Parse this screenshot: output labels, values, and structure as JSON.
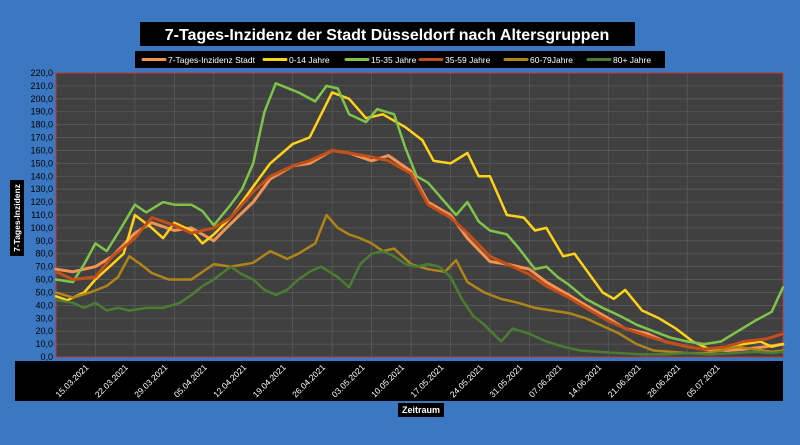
{
  "chart_data": {
    "type": "line",
    "title": "7-Tages-Inzidenz der Stadt Düsseldorf nach Altersgruppen",
    "xlabel": "Zeitraum",
    "ylabel": "7-Tages-Inzidenz",
    "ylim": [
      0,
      220
    ],
    "ytick_step": 10,
    "ytick_labels": [
      "0,0",
      "10,0",
      "20,0",
      "30,0",
      "40,0",
      "50,0",
      "60,0",
      "70,0",
      "80,0",
      "90,0",
      "100,0",
      "110,0",
      "120,0",
      "130,0",
      "140,0",
      "150,0",
      "160,0",
      "170,0",
      "180,0",
      "190,0",
      "200,0",
      "210,0",
      "220,0"
    ],
    "x_start_day": 0,
    "x_end_day": 129,
    "xtick_days": [
      0,
      7,
      14,
      21,
      28,
      35,
      42,
      49,
      56,
      63,
      70,
      77,
      84,
      91,
      98,
      105,
      112
    ],
    "xtick_labels": [
      "15.03.2021",
      "22.03.2021",
      "29.03.2021",
      "05.04.2021",
      "12.04.2021",
      "19.04.2021",
      "26.04.2021",
      "03.05.2021",
      "10.05.2021",
      "17.05.2021",
      "24.05.2021",
      "31.05.2021",
      "07.06.2021",
      "14.06.2021",
      "21.06.2021",
      "28.06.2021",
      "05.07.2021"
    ],
    "legend_position": "top",
    "grid": true,
    "colors": {
      "page_background": "#3c78c2",
      "plot_background": "#404040",
      "grid": "#5a5a5a",
      "plot_border": "#c0392b",
      "title_box": "#000000",
      "text_on_dark": "#ffffff"
    },
    "series": [
      {
        "name": "7-Tages-Inzidenz Stadt",
        "color": "#f39352",
        "width": 3,
        "points": [
          [
            0,
            68
          ],
          [
            3,
            66
          ],
          [
            7,
            70
          ],
          [
            10,
            78
          ],
          [
            14,
            96
          ],
          [
            17,
            104
          ],
          [
            21,
            98
          ],
          [
            24,
            100
          ],
          [
            28,
            90
          ],
          [
            30,
            99
          ],
          [
            35,
            120
          ],
          [
            38,
            138
          ],
          [
            42,
            148
          ],
          [
            45,
            150
          ],
          [
            49,
            160
          ],
          [
            52,
            158
          ],
          [
            56,
            152
          ],
          [
            59,
            156
          ],
          [
            63,
            144
          ],
          [
            66,
            120
          ],
          [
            70,
            110
          ],
          [
            73,
            92
          ],
          [
            77,
            74
          ],
          [
            80,
            72
          ],
          [
            84,
            68
          ],
          [
            87,
            58
          ],
          [
            91,
            48
          ],
          [
            94,
            40
          ],
          [
            98,
            30
          ],
          [
            101,
            22
          ],
          [
            105,
            18
          ],
          [
            108,
            12
          ],
          [
            112,
            8
          ],
          [
            115,
            6
          ],
          [
            119,
            5
          ],
          [
            122,
            6
          ],
          [
            126,
            8
          ],
          [
            129,
            10
          ]
        ]
      },
      {
        "name": "0-14 Jahre",
        "color": "#ffd21a",
        "width": 2.5,
        "points": [
          [
            0,
            47
          ],
          [
            2,
            44
          ],
          [
            5,
            50
          ],
          [
            7,
            60
          ],
          [
            10,
            72
          ],
          [
            12,
            80
          ],
          [
            14,
            110
          ],
          [
            17,
            100
          ],
          [
            19,
            92
          ],
          [
            21,
            104
          ],
          [
            24,
            98
          ],
          [
            26,
            88
          ],
          [
            28,
            95
          ],
          [
            31,
            108
          ],
          [
            35,
            132
          ],
          [
            38,
            150
          ],
          [
            42,
            165
          ],
          [
            45,
            170
          ],
          [
            49,
            205
          ],
          [
            52,
            200
          ],
          [
            55,
            185
          ],
          [
            58,
            188
          ],
          [
            62,
            178
          ],
          [
            65,
            168
          ],
          [
            67,
            152
          ],
          [
            70,
            150
          ],
          [
            73,
            158
          ],
          [
            75,
            140
          ],
          [
            77,
            140
          ],
          [
            80,
            110
          ],
          [
            83,
            108
          ],
          [
            85,
            98
          ],
          [
            87,
            100
          ],
          [
            90,
            78
          ],
          [
            92,
            80
          ],
          [
            95,
            62
          ],
          [
            97,
            50
          ],
          [
            99,
            45
          ],
          [
            101,
            52
          ],
          [
            104,
            36
          ],
          [
            107,
            30
          ],
          [
            110,
            22
          ],
          [
            113,
            12
          ],
          [
            116,
            6
          ],
          [
            119,
            8
          ],
          [
            122,
            10
          ],
          [
            125,
            12
          ],
          [
            127,
            8
          ],
          [
            129,
            10
          ]
        ]
      },
      {
        "name": "15-35 Jahre",
        "color": "#7fc44a",
        "width": 2.5,
        "points": [
          [
            0,
            60
          ],
          [
            3,
            58
          ],
          [
            5,
            72
          ],
          [
            7,
            88
          ],
          [
            9,
            82
          ],
          [
            11,
            96
          ],
          [
            14,
            118
          ],
          [
            16,
            112
          ],
          [
            19,
            120
          ],
          [
            21,
            118
          ],
          [
            24,
            118
          ],
          [
            26,
            113
          ],
          [
            28,
            102
          ],
          [
            31,
            118
          ],
          [
            33,
            130
          ],
          [
            35,
            150
          ],
          [
            37,
            190
          ],
          [
            39,
            212
          ],
          [
            43,
            205
          ],
          [
            46,
            198
          ],
          [
            48,
            210
          ],
          [
            50,
            208
          ],
          [
            52,
            188
          ],
          [
            55,
            182
          ],
          [
            57,
            192
          ],
          [
            60,
            188
          ],
          [
            62,
            162
          ],
          [
            64,
            140
          ],
          [
            66,
            135
          ],
          [
            68,
            125
          ],
          [
            71,
            110
          ],
          [
            73,
            120
          ],
          [
            75,
            105
          ],
          [
            77,
            98
          ],
          [
            80,
            95
          ],
          [
            82,
            85
          ],
          [
            85,
            68
          ],
          [
            87,
            70
          ],
          [
            89,
            62
          ],
          [
            91,
            56
          ],
          [
            94,
            45
          ],
          [
            97,
            38
          ],
          [
            100,
            32
          ],
          [
            103,
            25
          ],
          [
            106,
            20
          ],
          [
            109,
            15
          ],
          [
            112,
            12
          ],
          [
            115,
            10
          ],
          [
            118,
            12
          ],
          [
            121,
            20
          ],
          [
            124,
            28
          ],
          [
            127,
            35
          ],
          [
            129,
            54
          ]
        ]
      },
      {
        "name": "35-59 Jahre",
        "color": "#c24e1a",
        "width": 3,
        "points": [
          [
            0,
            66
          ],
          [
            3,
            60
          ],
          [
            7,
            62
          ],
          [
            10,
            78
          ],
          [
            14,
            92
          ],
          [
            17,
            108
          ],
          [
            21,
            102
          ],
          [
            24,
            96
          ],
          [
            28,
            100
          ],
          [
            31,
            108
          ],
          [
            35,
            128
          ],
          [
            38,
            140
          ],
          [
            42,
            148
          ],
          [
            45,
            152
          ],
          [
            49,
            160
          ],
          [
            52,
            158
          ],
          [
            56,
            155
          ],
          [
            59,
            152
          ],
          [
            63,
            142
          ],
          [
            66,
            118
          ],
          [
            70,
            108
          ],
          [
            73,
            96
          ],
          [
            77,
            78
          ],
          [
            80,
            72
          ],
          [
            84,
            64
          ],
          [
            87,
            55
          ],
          [
            91,
            46
          ],
          [
            94,
            38
          ],
          [
            98,
            28
          ],
          [
            101,
            22
          ],
          [
            105,
            16
          ],
          [
            108,
            12
          ],
          [
            112,
            8
          ],
          [
            115,
            6
          ],
          [
            119,
            8
          ],
          [
            122,
            12
          ],
          [
            126,
            14
          ],
          [
            129,
            18
          ]
        ]
      },
      {
        "name": "60-79Jahre",
        "color": "#b08418",
        "width": 2.5,
        "points": [
          [
            0,
            50
          ],
          [
            3,
            46
          ],
          [
            6,
            50
          ],
          [
            9,
            55
          ],
          [
            11,
            62
          ],
          [
            13,
            78
          ],
          [
            15,
            72
          ],
          [
            17,
            65
          ],
          [
            20,
            60
          ],
          [
            24,
            60
          ],
          [
            28,
            72
          ],
          [
            31,
            70
          ],
          [
            35,
            73
          ],
          [
            38,
            82
          ],
          [
            41,
            76
          ],
          [
            43,
            80
          ],
          [
            46,
            88
          ],
          [
            48,
            110
          ],
          [
            50,
            100
          ],
          [
            52,
            95
          ],
          [
            54,
            92
          ],
          [
            56,
            88
          ],
          [
            58,
            82
          ],
          [
            60,
            84
          ],
          [
            63,
            72
          ],
          [
            66,
            68
          ],
          [
            69,
            66
          ],
          [
            71,
            75
          ],
          [
            73,
            58
          ],
          [
            76,
            50
          ],
          [
            79,
            45
          ],
          [
            82,
            42
          ],
          [
            85,
            38
          ],
          [
            88,
            36
          ],
          [
            91,
            34
          ],
          [
            94,
            30
          ],
          [
            97,
            24
          ],
          [
            100,
            18
          ],
          [
            103,
            10
          ],
          [
            106,
            5
          ],
          [
            109,
            4
          ],
          [
            112,
            3
          ],
          [
            115,
            3
          ],
          [
            118,
            5
          ],
          [
            121,
            8
          ],
          [
            124,
            6
          ],
          [
            127,
            4
          ],
          [
            129,
            5
          ]
        ]
      },
      {
        "name": "80+ Jahre",
        "color": "#4a7d32",
        "width": 2.5,
        "points": [
          [
            0,
            44
          ],
          [
            3,
            42
          ],
          [
            5,
            38
          ],
          [
            7,
            42
          ],
          [
            9,
            36
          ],
          [
            11,
            38
          ],
          [
            13,
            36
          ],
          [
            16,
            38
          ],
          [
            19,
            38
          ],
          [
            22,
            42
          ],
          [
            24,
            48
          ],
          [
            26,
            55
          ],
          [
            28,
            60
          ],
          [
            31,
            70
          ],
          [
            33,
            64
          ],
          [
            35,
            60
          ],
          [
            37,
            52
          ],
          [
            39,
            48
          ],
          [
            41,
            52
          ],
          [
            43,
            60
          ],
          [
            45,
            66
          ],
          [
            47,
            70
          ],
          [
            50,
            62
          ],
          [
            52,
            54
          ],
          [
            54,
            72
          ],
          [
            56,
            80
          ],
          [
            58,
            82
          ],
          [
            60,
            78
          ],
          [
            62,
            72
          ],
          [
            64,
            70
          ],
          [
            66,
            72
          ],
          [
            68,
            70
          ],
          [
            70,
            62
          ],
          [
            72,
            45
          ],
          [
            74,
            32
          ],
          [
            76,
            25
          ],
          [
            79,
            12
          ],
          [
            81,
            22
          ],
          [
            84,
            18
          ],
          [
            87,
            12
          ],
          [
            90,
            8
          ],
          [
            93,
            5
          ],
          [
            96,
            4
          ],
          [
            100,
            3
          ],
          [
            104,
            2
          ],
          [
            108,
            2
          ],
          [
            112,
            3
          ],
          [
            116,
            2
          ],
          [
            120,
            3
          ],
          [
            124,
            4
          ],
          [
            127,
            3
          ],
          [
            129,
            4
          ]
        ]
      }
    ]
  }
}
